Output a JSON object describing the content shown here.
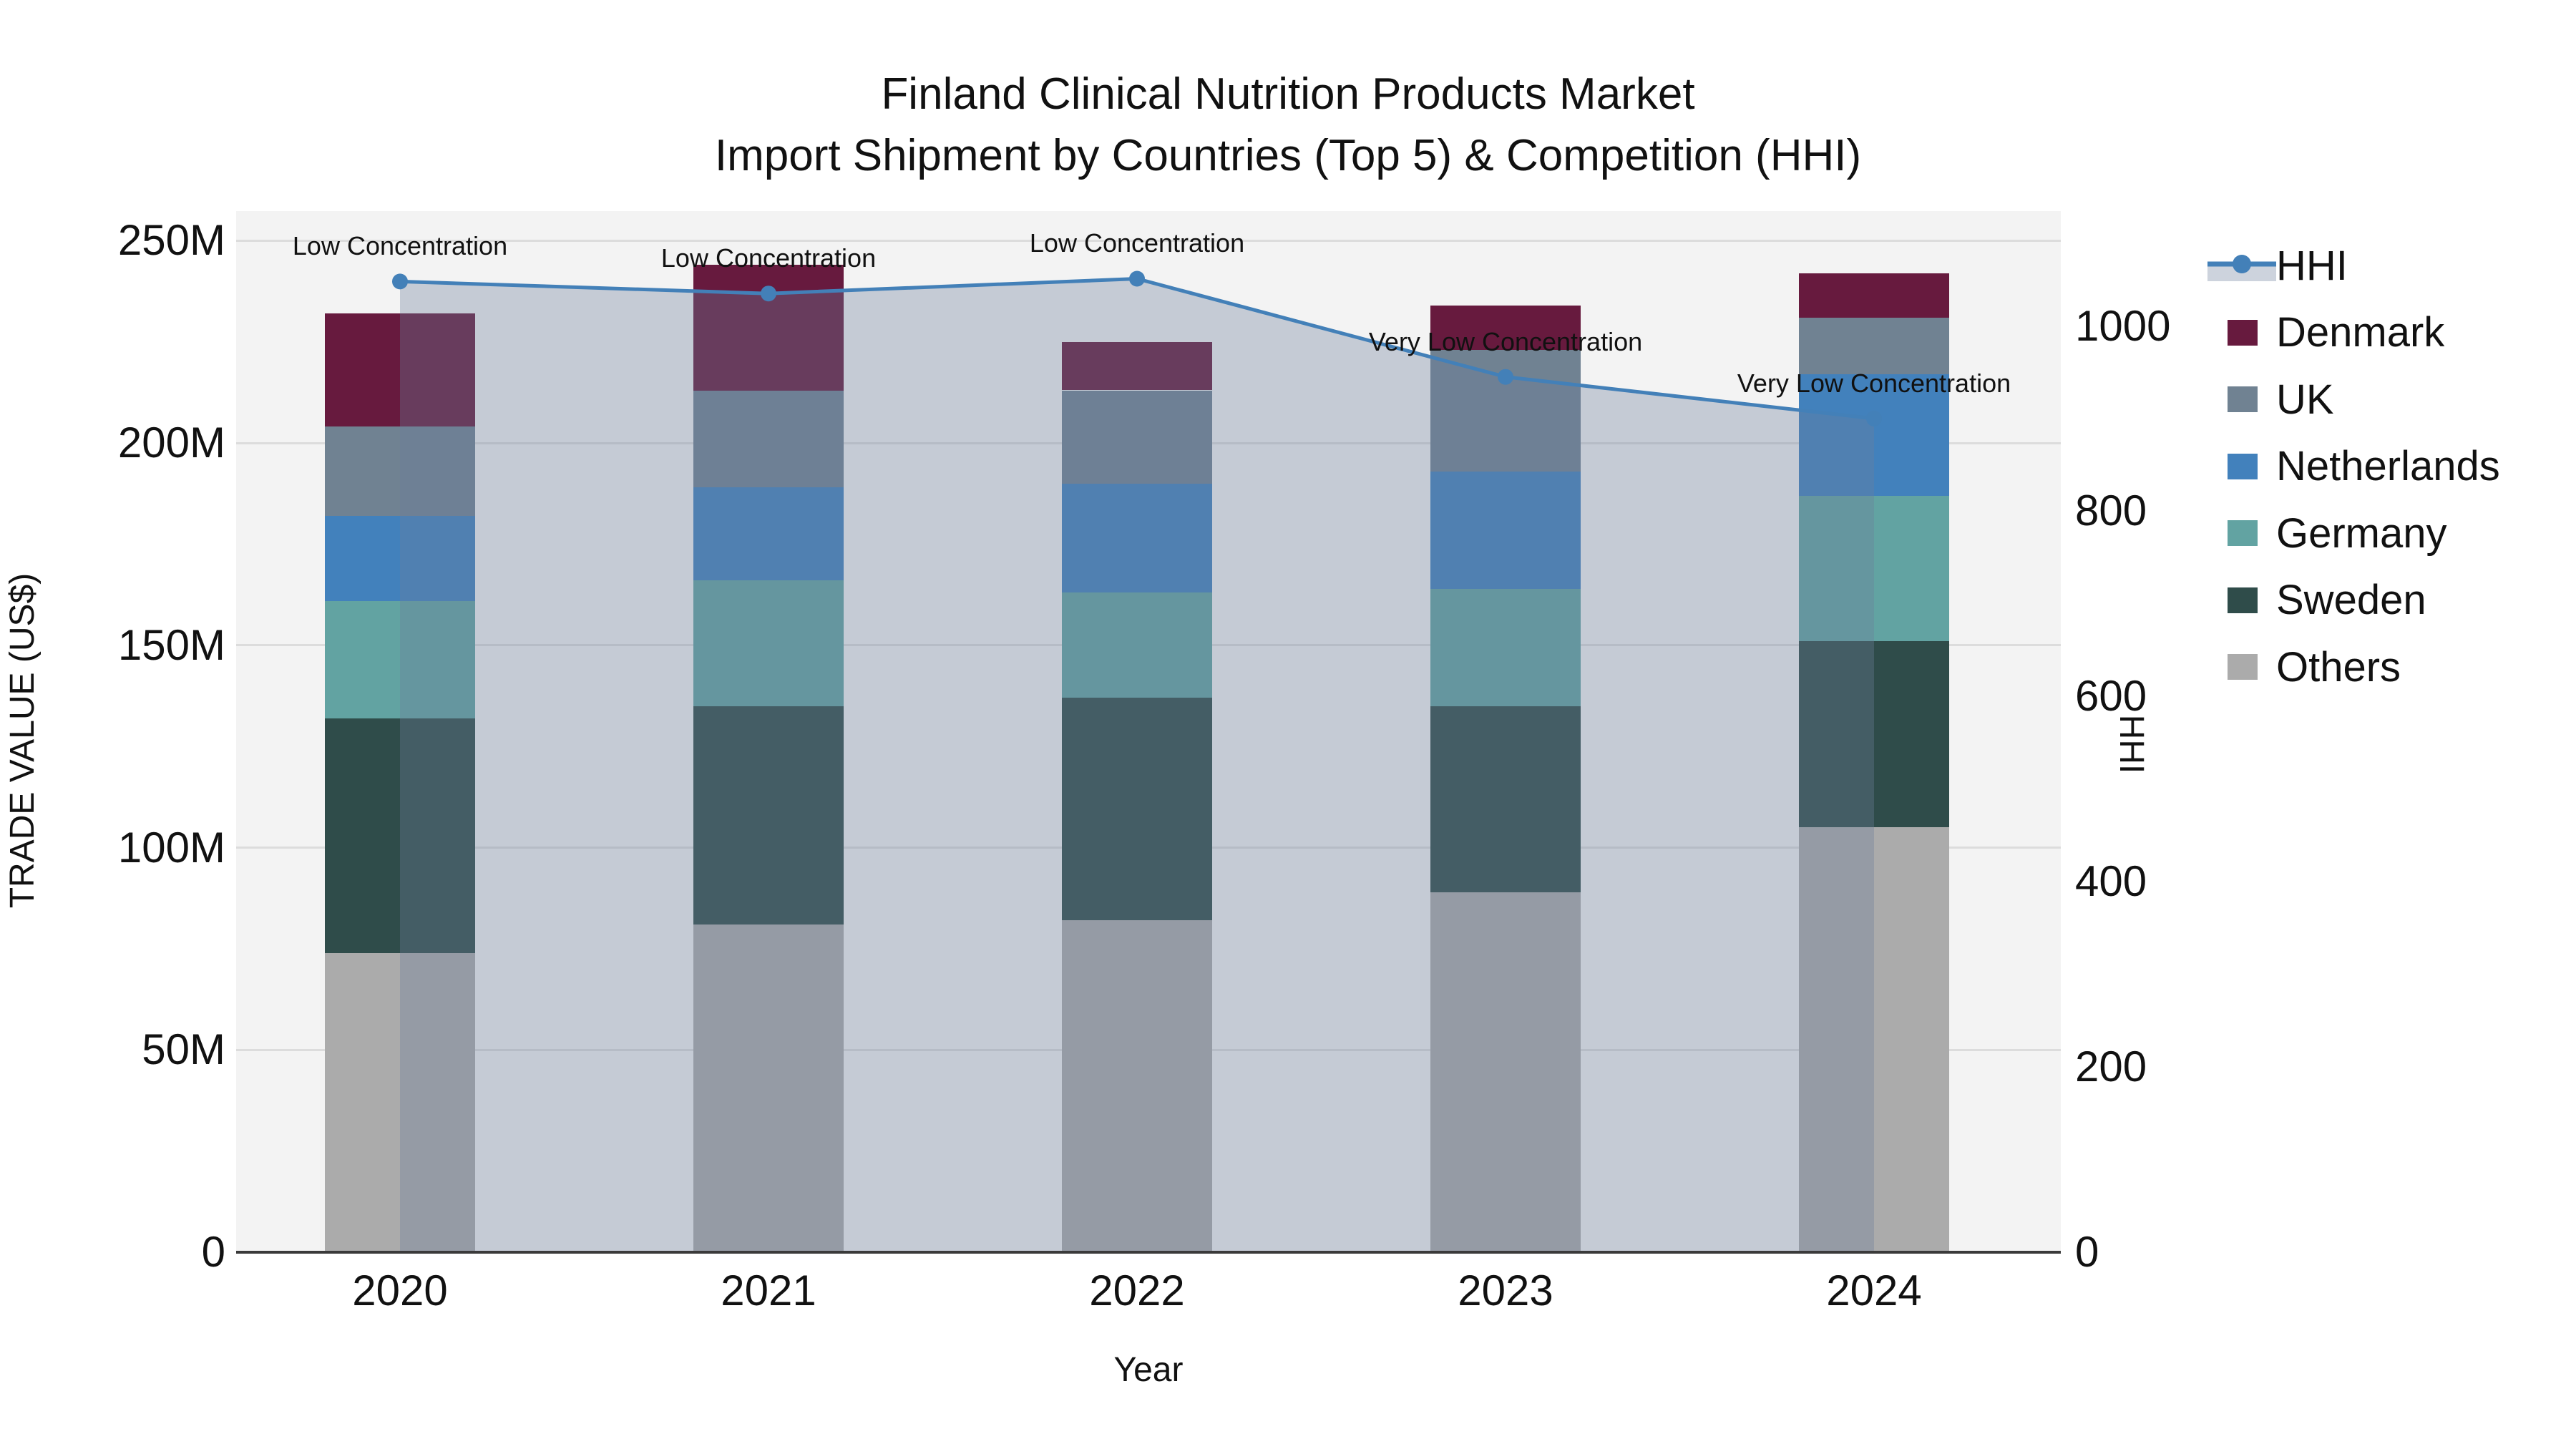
{
  "title": {
    "line1": "Finland Clinical Nutrition Products Market",
    "line2": "Import Shipment by Countries (Top 5) & Competition (HHI)"
  },
  "x_axis": {
    "title": "Year",
    "categories": [
      "2020",
      "2021",
      "2022",
      "2023",
      "2024"
    ]
  },
  "left_axis": {
    "title": "TRADE VALUE (US$)",
    "tick_labels": [
      "0",
      "50M",
      "100M",
      "150M",
      "200M",
      "250M"
    ],
    "tick_values": [
      0,
      50,
      100,
      150,
      200,
      250
    ],
    "max": 257.3
  },
  "right_axis": {
    "title": "HHI",
    "tick_labels": [
      "0",
      "200",
      "400",
      "600",
      "800",
      "1000"
    ],
    "tick_values": [
      0,
      200,
      400,
      600,
      800,
      1000
    ],
    "max": 1124
  },
  "legend": {
    "items": [
      {
        "label": "HHI",
        "kind": "line"
      },
      {
        "label": "Denmark",
        "kind": "swatch"
      },
      {
        "label": "UK",
        "kind": "swatch"
      },
      {
        "label": "Netherlands",
        "kind": "swatch"
      },
      {
        "label": "Germany",
        "kind": "swatch"
      },
      {
        "label": "Sweden",
        "kind": "swatch"
      },
      {
        "label": "Others",
        "kind": "swatch"
      }
    ]
  },
  "chart_data": {
    "type": "bar",
    "subtype": "stacked bars + line on secondary axis",
    "categories": [
      "2020",
      "2021",
      "2022",
      "2023",
      "2024"
    ],
    "value_unit": "million US$",
    "stack_order_bottom_to_top": [
      "Others",
      "Sweden",
      "Germany",
      "Netherlands",
      "UK",
      "Denmark"
    ],
    "series": [
      {
        "name": "Denmark",
        "color": "#671A3E",
        "values": [
          28,
          31,
          12,
          11,
          11
        ]
      },
      {
        "name": "UK",
        "color": "#708292",
        "values": [
          22,
          24,
          23,
          30,
          14
        ]
      },
      {
        "name": "Netherlands",
        "color": "#4281BC",
        "values": [
          21,
          23,
          27,
          29,
          30
        ]
      },
      {
        "name": "Germany",
        "color": "#62A3A2",
        "values": [
          29,
          31,
          26,
          29,
          36
        ]
      },
      {
        "name": "Sweden",
        "color": "#2F4C4A",
        "values": [
          58,
          54,
          55,
          46,
          46
        ]
      },
      {
        "name": "Others",
        "color": "#ABABAB",
        "values": [
          74,
          81,
          82,
          89,
          105
        ]
      }
    ],
    "bar_totals": [
      232,
      244,
      225,
      234,
      242
    ],
    "line_series": {
      "name": "HHI",
      "color": "#4380B8",
      "fill_color": "rgba(108,125,155,0.34)",
      "values": [
        1048,
        1035,
        1051,
        945,
        900
      ],
      "axis": "right",
      "fill": "to zero"
    },
    "annotations": [
      {
        "category": "2020",
        "text": "Low Concentration"
      },
      {
        "category": "2021",
        "text": "Low Concentration"
      },
      {
        "category": "2022",
        "text": "Low Concentration"
      },
      {
        "category": "2023",
        "text": "Very Low Concentration"
      },
      {
        "category": "2024",
        "text": "Very Low Concentration"
      }
    ],
    "xlabel": "Year",
    "ylabel_left": "TRADE VALUE (US$)",
    "ylabel_right": "HHI",
    "ylim_left": [
      0,
      257.3
    ],
    "ylim_right": [
      0,
      1124
    ],
    "grid": "horizontal gridlines every 50M",
    "legend_position": "right"
  },
  "colors": {
    "plot_bg": "#F3F3F3",
    "grid": "#DCDCDC",
    "axis_line": "#3a3a3a",
    "text": "#111111"
  }
}
